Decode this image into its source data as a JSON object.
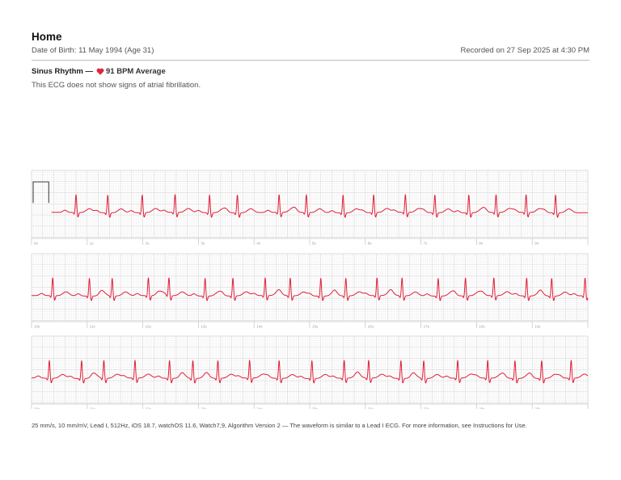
{
  "header": {
    "title": "Home",
    "date_of_birth": "Date of Birth: 11 May 1994 (Age 31)",
    "recorded": "Recorded on 27 Sep 2025 at 4:30 PM"
  },
  "classification": {
    "label": "Sinus Rhythm —",
    "heart_icon": "heart-icon",
    "average": "91 BPM Average",
    "summary": "This ECG does not show signs of atrial fibrillation."
  },
  "ecg": {
    "waveform_color": "#e11d37",
    "grid_color": "#d9d9d9",
    "rows": [
      {
        "ticks": [
          "0s",
          "1s",
          "2s",
          "3s",
          "4s",
          "5s",
          "6s",
          "7s",
          "8s",
          "9s"
        ],
        "beats": [
          0.8,
          1.37,
          1.99,
          2.58,
          3.2,
          3.7,
          4.45,
          4.94,
          5.6,
          6.15,
          6.72,
          7.25,
          7.86,
          8.35,
          8.89,
          9.42
        ]
      },
      {
        "ticks": [
          "10s",
          "11s",
          "12s",
          "13s",
          "14s",
          "15s",
          "16s",
          "17s",
          "18s",
          "19s"
        ],
        "beats": [
          0.38,
          1.04,
          1.45,
          2.1,
          2.47,
          3.12,
          3.62,
          4.2,
          4.65,
          5.2,
          5.65,
          6.21,
          6.66,
          7.31,
          7.8,
          8.31,
          8.9,
          9.35,
          9.95
        ]
      },
      {
        "ticks": [
          "20s",
          "21s",
          "22s",
          "23s",
          "24s",
          "25s",
          "26s",
          "27s",
          "28s",
          "29s"
        ],
        "beats": [
          0.32,
          0.9,
          1.3,
          1.86,
          2.48,
          2.9,
          3.35,
          3.92,
          4.45,
          5.04,
          5.62,
          6.06,
          6.64,
          7.05,
          7.66,
          8.2,
          8.69,
          9.17,
          9.7
        ]
      }
    ]
  },
  "footer": {
    "text": "25 mm/s, 10 mm/mV, Lead I, 512Hz, iOS 18.7, watchOS 11.6, Watch7,9, Algorithm Version 2 — The waveform is similar to a Lead I ECG. For more information, see Instructions for Use."
  }
}
